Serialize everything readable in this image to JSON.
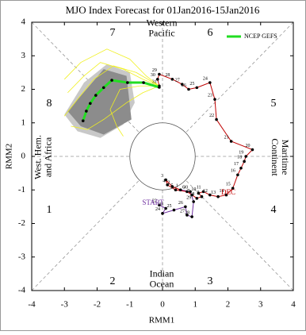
{
  "chart_data": {
    "type": "line",
    "title": "MJO Index Forecast for 01Jan2016-15Jan2016",
    "x_label": "RMM1",
    "y_label": "RMM2",
    "xlim": [
      -4,
      4
    ],
    "ylim": [
      -4,
      4
    ],
    "xticks": [
      -4,
      -3,
      -2,
      -1,
      0,
      1,
      2,
      3,
      4
    ],
    "yticks": [
      -4,
      -3,
      -2,
      -1,
      0,
      1,
      2,
      3,
      4
    ],
    "legend": "upper right",
    "phase_labels": [
      "1",
      "2",
      "3",
      "4",
      "5",
      "6",
      "7",
      "8"
    ],
    "regions": [
      [
        "Western",
        "Pacific"
      ],
      [
        "Indian",
        "Ocean"
      ],
      [
        "West. Hem.",
        "and Africa"
      ],
      [
        "Maritime",
        "Continent"
      ]
    ],
    "annotations": [
      {
        "text": "START",
        "color": "#7030a0"
      },
      {
        "text": "DEC",
        "color": "#c00000"
      }
    ],
    "shading": [
      {
        "color": "#c8c8c8",
        "x": [
          -3.0,
          -2.4,
          -1.7,
          -1.0,
          -0.85,
          -1.2,
          -1.9,
          -2.6
        ],
        "y": [
          1.25,
          2.2,
          2.75,
          2.5,
          1.6,
          0.95,
          0.55,
          0.75
        ]
      },
      {
        "color": "#8c8c8c",
        "x": [
          -2.9,
          -1.8,
          -1.1,
          -0.95,
          -1.8,
          -2.5
        ],
        "y": [
          1.35,
          2.6,
          2.4,
          1.1,
          0.65,
          0.9
        ]
      }
    ],
    "ensemble": {
      "color": "#f0f020",
      "members": [
        {
          "x": [
            -0.1,
            -0.6,
            -1.2,
            -1.9,
            -2.4,
            -2.9
          ],
          "y": [
            2.1,
            2.3,
            2.6,
            2.8,
            2.4,
            1.9
          ]
        },
        {
          "x": [
            -0.1,
            -0.7,
            -1.3,
            -1.6,
            -1.4,
            -1.2
          ],
          "y": [
            2.1,
            2.1,
            2.0,
            1.4,
            0.9,
            0.6
          ]
        },
        {
          "x": [
            -0.1,
            -0.5,
            -1.0,
            -1.7,
            -2.5,
            -3.0
          ],
          "y": [
            2.1,
            2.4,
            2.9,
            3.2,
            2.8,
            2.3
          ]
        },
        {
          "x": [
            -0.1,
            -0.6,
            -1.1,
            -1.8,
            -2.3,
            -2.8
          ],
          "y": [
            2.1,
            1.9,
            1.6,
            1.1,
            0.8,
            0.9
          ]
        },
        {
          "x": [
            -0.1,
            -0.8,
            -1.5,
            -2.1,
            -2.6,
            -3.0
          ],
          "y": [
            2.1,
            2.5,
            2.7,
            2.3,
            1.7,
            1.2
          ]
        }
      ]
    },
    "series": [
      {
        "color": "#7030a0",
        "x": [
          -0.1,
          0.1,
          0.0,
          0.35,
          0.7,
          0.75,
          0.9,
          0.95,
          0.85,
          0.55
        ],
        "y": [
          -1.45,
          -1.55,
          -1.7,
          -1.6,
          -1.5,
          -1.75,
          -1.8,
          -1.35,
          -1.05,
          -1.0
        ],
        "point_labels": [
          "22",
          "23",
          "24",
          "25",
          "26",
          "27",
          "28",
          "29",
          "30",
          null
        ]
      },
      {
        "color": "#c00000",
        "x": [
          0.55,
          0.3,
          0.1,
          0.15,
          0.4,
          0.75,
          0.9,
          1.05,
          1.2,
          1.1,
          1.25,
          1.45,
          1.7,
          1.95,
          2.15,
          2.3,
          2.4,
          2.5,
          2.55,
          2.75,
          2.1,
          1.65,
          1.6,
          1.45,
          1.05,
          0.8,
          0.6,
          0.3,
          -0.1,
          -0.15,
          -0.1
        ],
        "y": [
          -1.0,
          -0.9,
          -0.7,
          -0.85,
          -1.0,
          -1.05,
          -1.15,
          -1.25,
          -1.2,
          -1.1,
          -1.05,
          -1.15,
          -1.2,
          -1.15,
          -0.95,
          -0.55,
          -0.35,
          -0.15,
          0.0,
          0.2,
          0.45,
          1.1,
          1.7,
          2.2,
          2.05,
          2.0,
          2.15,
          2.3,
          2.45,
          2.3,
          2.1
        ],
        "point_labels": [
          "1",
          "2",
          "3",
          "4",
          "5",
          "6",
          "7",
          "8",
          "9",
          "10",
          "11",
          "12",
          "13",
          "14",
          "15",
          "16",
          "17",
          "18",
          "19",
          "20",
          "21",
          "22",
          "23",
          "24",
          "25",
          "26",
          "27",
          "28",
          "29",
          "30",
          "31"
        ]
      },
      {
        "name": "NCEP GEFS",
        "color": "#22dd22",
        "x": [
          -0.1,
          -0.58,
          -1.07,
          -1.55,
          -1.8,
          -2.04,
          -2.21,
          -2.33,
          -2.43
        ],
        "y": [
          2.06,
          2.2,
          2.2,
          2.27,
          2.05,
          1.82,
          1.58,
          1.35,
          1.06
        ]
      }
    ]
  }
}
